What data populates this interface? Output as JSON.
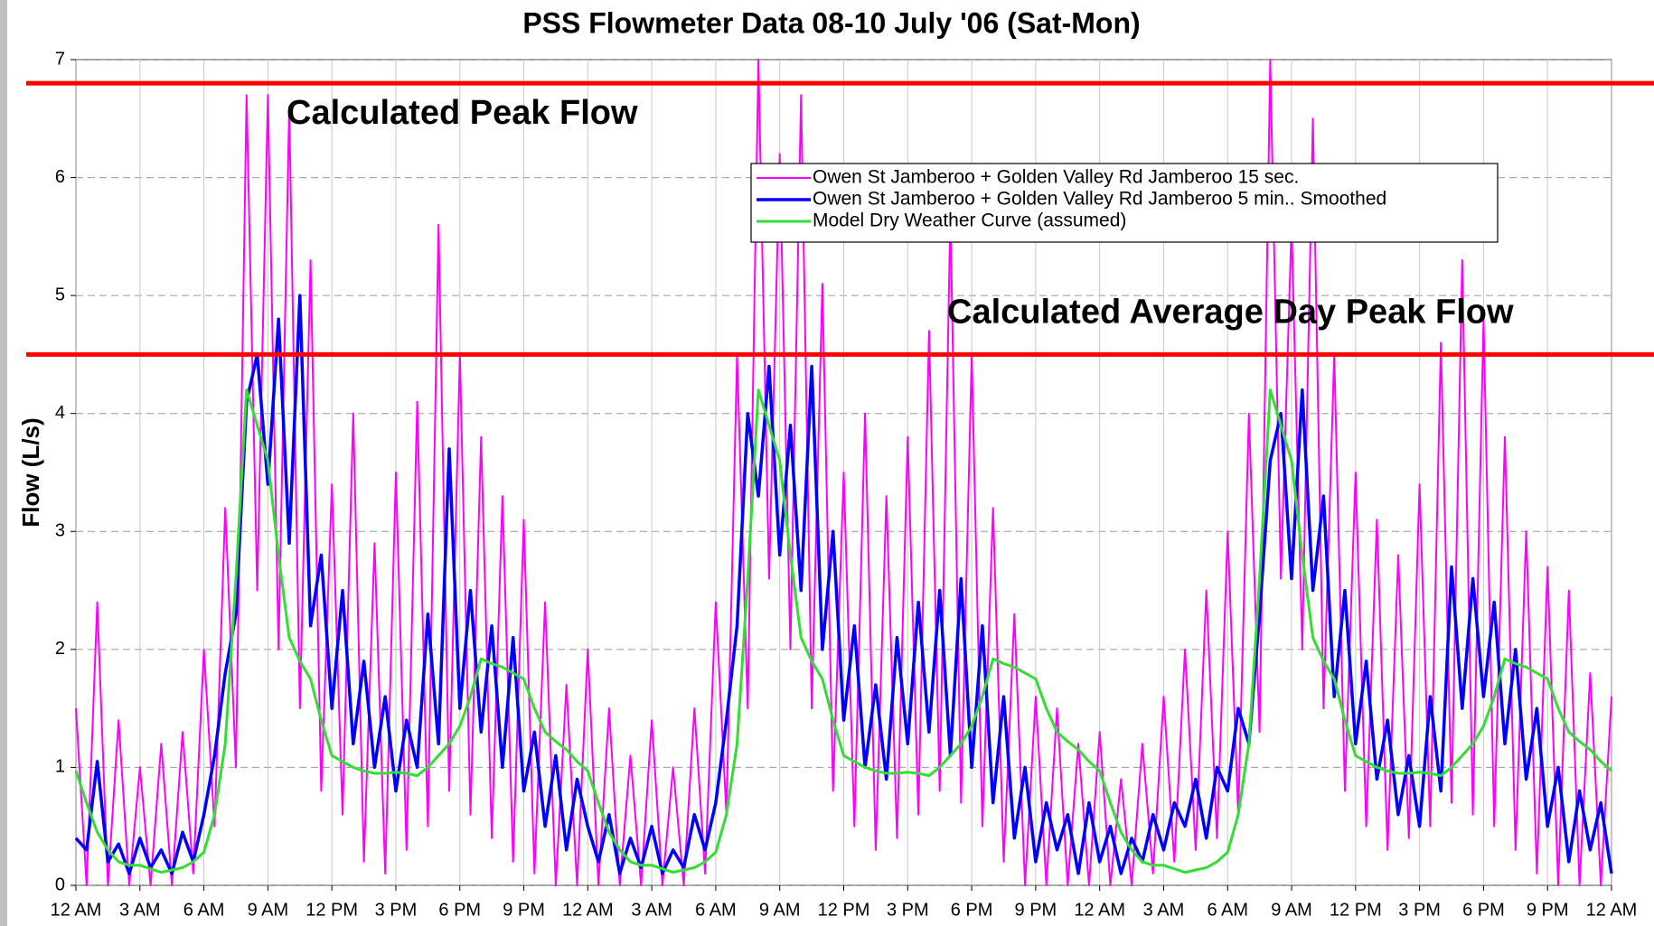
{
  "chart_data": {
    "type": "line",
    "title": "PSS Flowmeter Data 08-10 July '06 (Sat-Mon)",
    "y_label": "Flow (L/s)",
    "xlim": [
      0,
      72
    ],
    "xticks": [
      {
        "value": 0,
        "label": "12 AM"
      },
      {
        "value": 3,
        "label": "3 AM"
      },
      {
        "value": 6,
        "label": "6 AM"
      },
      {
        "value": 9,
        "label": "9 AM"
      },
      {
        "value": 12,
        "label": "12 PM"
      },
      {
        "value": 15,
        "label": "3 PM"
      },
      {
        "value": 18,
        "label": "6 PM"
      },
      {
        "value": 21,
        "label": "9 PM"
      },
      {
        "value": 24,
        "label": "12 AM"
      },
      {
        "value": 27,
        "label": "3 AM"
      },
      {
        "value": 30,
        "label": "6 AM"
      },
      {
        "value": 33,
        "label": "9 AM"
      },
      {
        "value": 36,
        "label": "12 PM"
      },
      {
        "value": 39,
        "label": "3 PM"
      },
      {
        "value": 42,
        "label": "6 PM"
      },
      {
        "value": 45,
        "label": "9 PM"
      },
      {
        "value": 48,
        "label": "12 AM"
      },
      {
        "value": 51,
        "label": "3 AM"
      },
      {
        "value": 54,
        "label": "6 AM"
      },
      {
        "value": 57,
        "label": "9 AM"
      },
      {
        "value": 60,
        "label": "12 PM"
      },
      {
        "value": 63,
        "label": "3 PM"
      },
      {
        "value": 66,
        "label": "6 PM"
      },
      {
        "value": 69,
        "label": "9 PM"
      },
      {
        "value": 72,
        "label": "12 AM"
      }
    ],
    "ylim": [
      0,
      7
    ],
    "yticks": [
      0,
      1,
      2,
      3,
      4,
      5,
      6,
      7
    ],
    "grid": true,
    "x": [
      0,
      0.5,
      1,
      1.5,
      2,
      2.5,
      3,
      3.5,
      4,
      4.5,
      5,
      5.5,
      6,
      6.5,
      7,
      7.5,
      8,
      8.5,
      9,
      9.5,
      10,
      10.5,
      11,
      11.5,
      12,
      12.5,
      13,
      13.5,
      14,
      14.5,
      15,
      15.5,
      16,
      16.5,
      17,
      17.5,
      18,
      18.5,
      19,
      19.5,
      20,
      20.5,
      21,
      21.5,
      22,
      22.5,
      23,
      23.5,
      24,
      24.5,
      25,
      25.5,
      26,
      26.5,
      27,
      27.5,
      28,
      28.5,
      29,
      29.5,
      30,
      30.5,
      31,
      31.5,
      32,
      32.5,
      33,
      33.5,
      34,
      34.5,
      35,
      35.5,
      36,
      36.5,
      37,
      37.5,
      38,
      38.5,
      39,
      39.5,
      40,
      40.5,
      41,
      41.5,
      42,
      42.5,
      43,
      43.5,
      44,
      44.5,
      45,
      45.5,
      46,
      46.5,
      47,
      47.5,
      48,
      48.5,
      49,
      49.5,
      50,
      50.5,
      51,
      51.5,
      52,
      52.5,
      53,
      53.5,
      54,
      54.5,
      55,
      55.5,
      56,
      56.5,
      57,
      57.5,
      58,
      58.5,
      59,
      59.5,
      60,
      60.5,
      61,
      61.5,
      62,
      62.5,
      63,
      63.5,
      64,
      64.5,
      65,
      65.5,
      66,
      66.5,
      67,
      67.5,
      68,
      68.5,
      69,
      69.5,
      70,
      70.5,
      71,
      71.5,
      72
    ],
    "series": [
      {
        "name": "Owen St Jamberoo + Golden Valley Rd Jamberoo 15 sec.",
        "color": "#ff00ff",
        "width": 2,
        "values": [
          1.5,
          0,
          2.4,
          0,
          1.4,
          0,
          1.0,
          0,
          1.2,
          0,
          1.3,
          0.1,
          2.0,
          0.5,
          3.2,
          1.0,
          6.7,
          2.5,
          6.7,
          2.0,
          6.6,
          1.5,
          5.3,
          0.8,
          3.4,
          0.6,
          4.0,
          0.2,
          2.9,
          0.1,
          3.5,
          0.3,
          4.1,
          0.5,
          5.6,
          0.8,
          4.5,
          0.6,
          3.8,
          0.4,
          3.3,
          0.2,
          3.1,
          0.1,
          2.4,
          0,
          1.7,
          0,
          2.0,
          0,
          1.5,
          0,
          1.1,
          0,
          1.4,
          0,
          1.0,
          0,
          1.5,
          0.1,
          2.4,
          0.6,
          4.5,
          1.5,
          7.0,
          2.6,
          6.2,
          2.0,
          6.7,
          1.5,
          5.1,
          0.8,
          3.5,
          0.5,
          4.0,
          0.3,
          3.3,
          0.4,
          3.8,
          0.6,
          4.7,
          0.8,
          5.7,
          0.7,
          4.5,
          0.5,
          3.2,
          0.2,
          2.3,
          0,
          1.6,
          0,
          1.5,
          0,
          1.2,
          0,
          1.3,
          0,
          0.9,
          0,
          1.2,
          0.1,
          1.6,
          0.2,
          2.0,
          0.3,
          2.5,
          0.4,
          3.0,
          0.6,
          4.0,
          1.3,
          7.0,
          2.6,
          5.6,
          2.0,
          6.5,
          1.5,
          4.5,
          0.8,
          3.5,
          0.5,
          3.1,
          0.3,
          2.8,
          0.4,
          3.4,
          0.5,
          4.6,
          0.7,
          5.3,
          0.6,
          4.8,
          0.5,
          3.8,
          0.3,
          3.0,
          0.1,
          2.7,
          0,
          2.5,
          0,
          1.8,
          0,
          1.6
        ]
      },
      {
        "name": "Owen St Jamberoo + Golden Valley Rd Jamberoo 5 min.. Smoothed",
        "color": "#0000ff",
        "width": 3.5,
        "values": [
          0.4,
          0.3,
          1.05,
          0.2,
          0.35,
          0.1,
          0.4,
          0.15,
          0.3,
          0.1,
          0.45,
          0.2,
          0.6,
          1.1,
          1.8,
          2.3,
          4.1,
          4.5,
          3.4,
          4.8,
          2.9,
          5.0,
          2.2,
          2.8,
          1.5,
          2.5,
          1.2,
          1.9,
          1.0,
          1.6,
          0.8,
          1.4,
          1.0,
          2.3,
          1.2,
          3.7,
          1.5,
          2.5,
          1.3,
          2.2,
          1.0,
          2.1,
          0.8,
          1.3,
          0.5,
          1.1,
          0.3,
          0.9,
          0.5,
          0.2,
          0.6,
          0.1,
          0.4,
          0.15,
          0.5,
          0.1,
          0.3,
          0.15,
          0.6,
          0.3,
          0.7,
          1.4,
          2.2,
          4.0,
          3.3,
          4.4,
          2.8,
          3.9,
          2.5,
          4.4,
          2.0,
          3.0,
          1.4,
          2.2,
          1.0,
          1.7,
          0.9,
          2.1,
          1.2,
          2.4,
          1.3,
          2.5,
          1.1,
          2.6,
          1.0,
          2.2,
          0.7,
          1.6,
          0.4,
          1.0,
          0.2,
          0.7,
          0.3,
          0.6,
          0.1,
          0.7,
          0.2,
          0.5,
          0.1,
          0.4,
          0.2,
          0.6,
          0.3,
          0.7,
          0.5,
          0.9,
          0.4,
          1.0,
          0.8,
          1.5,
          1.2,
          2.3,
          3.6,
          4.0,
          2.6,
          4.2,
          2.5,
          3.3,
          1.6,
          2.5,
          1.2,
          1.9,
          0.9,
          1.4,
          0.6,
          1.1,
          0.5,
          1.6,
          0.8,
          2.7,
          1.5,
          2.6,
          1.6,
          2.4,
          1.2,
          2.0,
          0.9,
          1.5,
          0.5,
          1.0,
          0.2,
          0.8,
          0.3,
          0.7,
          0.1
        ]
      },
      {
        "name": "Model Dry Weather Curve (assumed)",
        "color": "#33dd33",
        "width": 3,
        "values": [
          0.97,
          0.7,
          0.45,
          0.3,
          0.2,
          0.17,
          0.17,
          0.14,
          0.11,
          0.13,
          0.15,
          0.2,
          0.28,
          0.6,
          1.2,
          2.6,
          4.2,
          3.9,
          3.6,
          2.8,
          2.1,
          1.9,
          1.75,
          1.4,
          1.1,
          1.05,
          1.0,
          0.97,
          0.95,
          0.95,
          0.96,
          0.95,
          0.93,
          1.0,
          1.1,
          1.2,
          1.35,
          1.6,
          1.92,
          1.88,
          1.85,
          1.8,
          1.75,
          1.5,
          1.3,
          1.22,
          1.15,
          1.05,
          0.97,
          0.7,
          0.45,
          0.3,
          0.2,
          0.17,
          0.17,
          0.14,
          0.11,
          0.13,
          0.15,
          0.2,
          0.28,
          0.6,
          1.2,
          2.6,
          4.2,
          3.9,
          3.6,
          2.8,
          2.1,
          1.9,
          1.75,
          1.4,
          1.1,
          1.05,
          1.0,
          0.97,
          0.95,
          0.95,
          0.96,
          0.95,
          0.93,
          1.0,
          1.1,
          1.2,
          1.35,
          1.6,
          1.92,
          1.88,
          1.85,
          1.8,
          1.75,
          1.5,
          1.3,
          1.22,
          1.15,
          1.05,
          0.97,
          0.7,
          0.45,
          0.3,
          0.2,
          0.17,
          0.17,
          0.14,
          0.11,
          0.13,
          0.15,
          0.2,
          0.28,
          0.6,
          1.2,
          2.6,
          4.2,
          3.9,
          3.6,
          2.8,
          2.1,
          1.9,
          1.75,
          1.4,
          1.1,
          1.05,
          1.0,
          0.97,
          0.95,
          0.95,
          0.96,
          0.95,
          0.93,
          1.0,
          1.1,
          1.2,
          1.35,
          1.6,
          1.92,
          1.88,
          1.85,
          1.8,
          1.75,
          1.5,
          1.3,
          1.22,
          1.15,
          1.05,
          0.97
        ]
      }
    ],
    "reference_lines": [
      {
        "value": 6.8,
        "label": "Calculated Peak Flow",
        "color": "#ff0000"
      },
      {
        "value": 4.5,
        "label": "Calculated Average Day Peak Flow",
        "color": "#ff0000"
      }
    ]
  }
}
